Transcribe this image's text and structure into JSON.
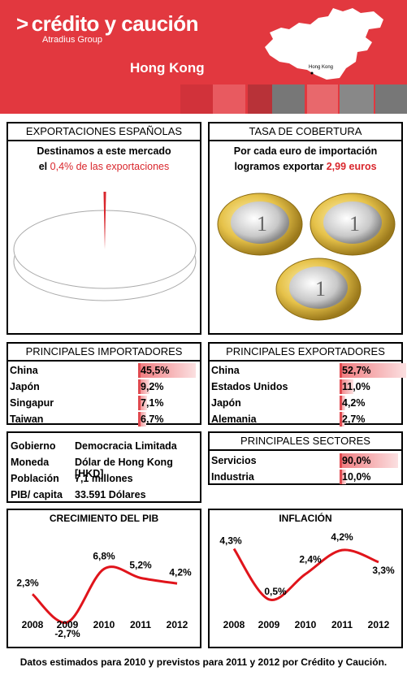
{
  "header": {
    "brand": "crédito y caución",
    "brand_sub": "Atradius Group",
    "country": "Hong Kong",
    "map_label": "Hong Kong"
  },
  "exportaciones": {
    "title": "EXPORTACIONES ESPAÑOLAS",
    "line1": "Destinamos a este mercado",
    "line2_prefix": "el ",
    "line2_value": "0,4% de las exportaciones",
    "share_percent": 0.4
  },
  "cobertura": {
    "title": "TASA DE COBERTURA",
    "line1": "Por cada euro de importación",
    "line2_prefix": "logramos exportar ",
    "line2_value": "2,99 euros",
    "coins": 2.99,
    "coin_icon": "euro-coin-icon"
  },
  "importadores": {
    "title": "PRINCIPALES IMPORTADORES",
    "items": [
      {
        "name": "China",
        "value": "45,5%",
        "pct": 45.5
      },
      {
        "name": "Japón",
        "value": "9,2%",
        "pct": 9.2
      },
      {
        "name": "Singapur",
        "value": "7,1%",
        "pct": 7.1
      },
      {
        "name": "Taiwan",
        "value": "6,7%",
        "pct": 6.7
      }
    ]
  },
  "exportadores": {
    "title": "PRINCIPALES EXPORTADORES",
    "items": [
      {
        "name": "China",
        "value": "52,7%",
        "pct": 52.7
      },
      {
        "name": "Estados Unidos",
        "value": "11,0%",
        "pct": 11.0
      },
      {
        "name": "Japón",
        "value": "4,2%",
        "pct": 4.2
      },
      {
        "name": "Alemania",
        "value": "2,7%",
        "pct": 2.7
      }
    ]
  },
  "info": {
    "items": [
      {
        "label": "Gobierno",
        "value": "Democracia Limitada"
      },
      {
        "label": "Moneda",
        "value": "Dólar de Hong Kong [HKD]"
      },
      {
        "label": "Población",
        "value": "7,1 millones"
      },
      {
        "label": "PIB/ capita",
        "value": "33.591 Dólares"
      }
    ]
  },
  "sectores": {
    "title": "PRINCIPALES SECTORES",
    "items": [
      {
        "name": "Servicios",
        "value": "90,0%",
        "pct": 90.0
      },
      {
        "name": "Industria",
        "value": "10,0%",
        "pct": 10.0
      }
    ]
  },
  "chart_data": [
    {
      "type": "line",
      "title": "CRECIMIENTO DEL PIB",
      "x": [
        "2008",
        "2009",
        "2010",
        "2011",
        "2012"
      ],
      "values": [
        2.3,
        -2.7,
        6.8,
        5.2,
        4.2
      ],
      "labels": [
        "2,3%",
        "-2,7%",
        "6,8%",
        "5,2%",
        "4,2%"
      ],
      "ylim": [
        -3,
        8
      ],
      "color": "#e0141b"
    },
    {
      "type": "line",
      "title": "INFLACIÓN",
      "x": [
        "2008",
        "2009",
        "2010",
        "2011",
        "2012"
      ],
      "values": [
        4.3,
        0.5,
        2.4,
        4.2,
        3.3
      ],
      "labels": [
        "4,3%",
        "0,5%",
        "2,4%",
        "4,2%",
        "3,3%"
      ],
      "ylim": [
        0,
        5
      ],
      "color": "#e0141b"
    }
  ],
  "footer": "Datos estimados para 2010 y previstos para 2011  y 2012 por Crédito y Caución."
}
